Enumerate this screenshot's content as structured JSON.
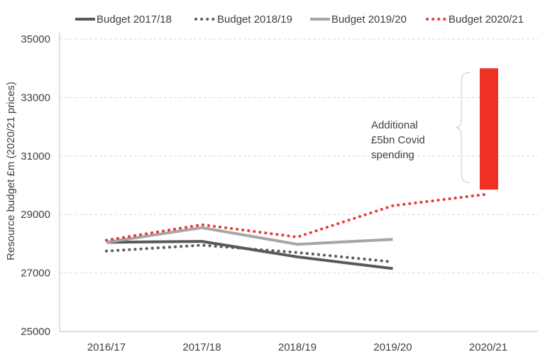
{
  "chart_data": {
    "type": "line",
    "title": "",
    "xlabel": "",
    "ylabel": "Resource budget £m (2020/21 prices)",
    "ylim": [
      25000,
      35000
    ],
    "yticks": [
      25000,
      27000,
      29000,
      31000,
      33000,
      35000
    ],
    "grid": "horizontal, dashed",
    "legend_position": "top",
    "categories": [
      "2016/17",
      "2017/18",
      "2018/19",
      "2019/20",
      "2020/21"
    ],
    "series": [
      {
        "name": "Budget 2017/18",
        "style": "solid",
        "color": "#595959",
        "values": [
          28050,
          28080,
          27550,
          27150,
          null
        ]
      },
      {
        "name": "Budget 2018/19",
        "style": "dotted",
        "color": "#595959",
        "values": [
          27750,
          27950,
          27700,
          27380,
          null
        ]
      },
      {
        "name": "Budget 2019/20",
        "style": "solid",
        "color": "#a6a6a6",
        "values": [
          28050,
          28550,
          27980,
          28150,
          null
        ]
      },
      {
        "name": "Budget 2020/21",
        "style": "dotted",
        "color": "#e8382f",
        "values": [
          28120,
          28650,
          28230,
          29300,
          29700
        ]
      }
    ],
    "bar": {
      "category": "2020/21",
      "from": 29850,
      "to": 34000,
      "color": "#ee3124"
    },
    "annotation": [
      "Additional",
      "£5bn Covid",
      "spending"
    ]
  }
}
